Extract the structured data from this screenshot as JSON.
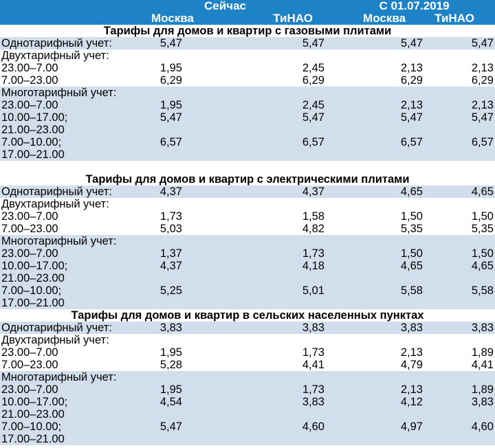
{
  "header": {
    "group_now": "Сейчас",
    "group_from": "С 01.07.2019",
    "col_moscow_1": "Москва",
    "col_tinao_1": "ТиНАО",
    "col_moscow_2": "Москва",
    "col_tinao_2": "ТиНАО"
  },
  "sections": [
    {
      "title": "Тарифы для домов и квартир с газовыми плитами",
      "single": {
        "label": "Однотарифный учет:",
        "values": [
          "5,47",
          "5,47",
          "5,47",
          "5,47"
        ]
      },
      "dual_label": "Двухтарифный учет:",
      "dual": [
        {
          "label": "23.00–7.00",
          "values": [
            "1,95",
            "2,45",
            "2,13",
            "2,13"
          ]
        },
        {
          "label": "7.00–23.00",
          "values": [
            "6,29",
            "6,29",
            "6,29",
            "6,29"
          ]
        }
      ],
      "multi_label": "Многотарифный учет:",
      "multi": [
        {
          "label": "23.00–7.00",
          "values": [
            "1,95",
            "2,45",
            "2,13",
            "2,13"
          ]
        },
        {
          "label": "10.00–17.00;",
          "values": [
            "5,47",
            "5,47",
            "5,47",
            "5,47"
          ]
        },
        {
          "label": "21.00–23.00",
          "values": [
            "",
            "",
            "",
            ""
          ]
        },
        {
          "label": "7.00–10.00;",
          "values": [
            "6,57",
            "6,57",
            "6,57",
            "6,57"
          ]
        },
        {
          "label": "17.00–21.00",
          "values": [
            "",
            "",
            "",
            ""
          ]
        }
      ]
    },
    {
      "title": "Тарифы для домов и квартир с электрическими плитами",
      "single": {
        "label": "Однотарифный учет:",
        "values": [
          "4,37",
          "4,37",
          "4,65",
          "4,65"
        ]
      },
      "dual_label": "Двухтарифный учет:",
      "dual": [
        {
          "label": "23.00–7.00",
          "values": [
            "1,73",
            "1,58",
            "1,50",
            "1,50"
          ]
        },
        {
          "label": "7.00–23.00",
          "values": [
            "5,03",
            "4,82",
            "5,35",
            "5,35"
          ]
        }
      ],
      "multi_label": "Многотарифный учет:",
      "multi": [
        {
          "label": "23.00–7.00",
          "values": [
            "1,37",
            "1,73",
            "1,50",
            "1,50"
          ]
        },
        {
          "label": "10.00–17.00;",
          "values": [
            "4,37",
            "4,18",
            "4,65",
            "4,65"
          ]
        },
        {
          "label": "21.00–23.00",
          "values": [
            "",
            "",
            "",
            ""
          ]
        },
        {
          "label": "7.00–10.00;",
          "values": [
            "5,25",
            "5,01",
            "5,58",
            "5,58"
          ]
        },
        {
          "label": "17.00–21.00",
          "values": [
            "",
            "",
            "",
            ""
          ]
        }
      ]
    },
    {
      "title": "Тарифы для домов и квартир в сельских населенных пунктах",
      "single": {
        "label": "Однотарифный учет:",
        "values": [
          "3,83",
          "3,83",
          "3,83",
          "3,83"
        ]
      },
      "dual_label": "Двухтарифный учет:",
      "dual": [
        {
          "label": "23.00–7.00",
          "values": [
            "1,95",
            "1,73",
            "2,13",
            "1,89"
          ]
        },
        {
          "label": "7.00–23.00",
          "values": [
            "5,28",
            "4,41",
            "4,79",
            "4,41"
          ]
        }
      ],
      "multi_label": "Многотарифный учет:",
      "multi": [
        {
          "label": "23.00–7.00",
          "values": [
            "1,95",
            "1,73",
            "2,13",
            "1,89"
          ]
        },
        {
          "label": "10.00–17.00;",
          "values": [
            "4,54",
            "3,83",
            "4,12",
            "3,83"
          ]
        },
        {
          "label": "21.00–23.00",
          "values": [
            "",
            "",
            "",
            ""
          ]
        },
        {
          "label": "7.00–10.00;",
          "values": [
            "5,47",
            "4,60",
            "4,97",
            "4,60"
          ]
        },
        {
          "label": "17.00–21.00",
          "values": [
            "",
            "",
            "",
            ""
          ]
        }
      ]
    }
  ],
  "colors": {
    "header_bg": "#1d83c6",
    "shade": "#d2deeb"
  }
}
